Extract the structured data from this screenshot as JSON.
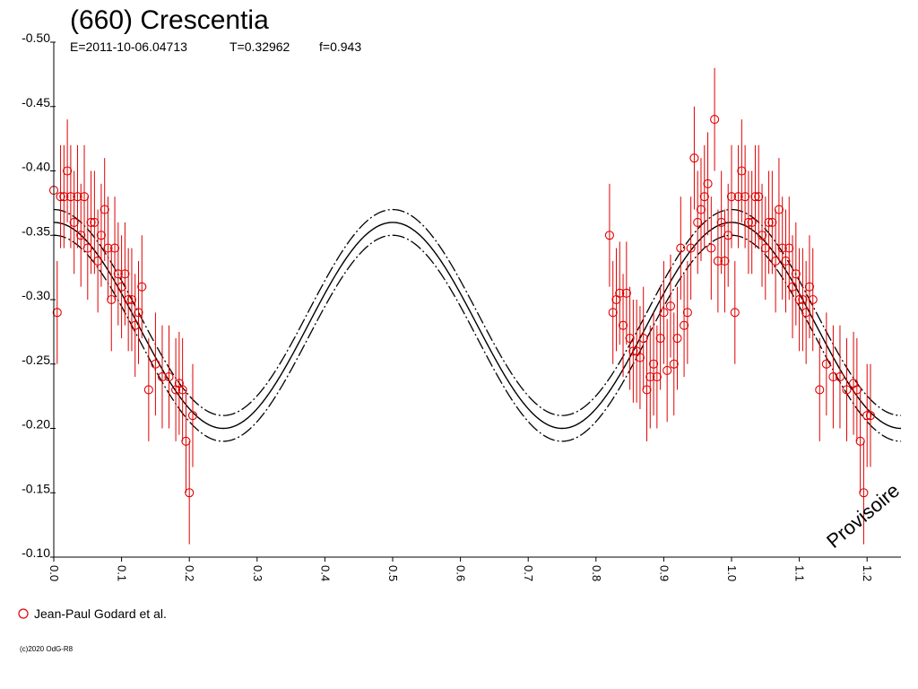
{
  "chart_data": {
    "type": "scatter",
    "title": "(660) Crescentia",
    "subtitle": {
      "epoch": "E=2011-10-06.04713",
      "period": "T=0.32962",
      "fraction": "f=0.943"
    },
    "xlabel": "",
    "ylabel": "",
    "xlim": [
      0.0,
      1.25
    ],
    "ylim": [
      -0.1,
      -0.5
    ],
    "x_ticks": [
      "0.0",
      "0.1",
      "0.2",
      "0.3",
      "0.4",
      "0.5",
      "0.6",
      "0.7",
      "0.8",
      "0.9",
      "1.0",
      "1.1",
      "1.2"
    ],
    "y_ticks": [
      "-0.50",
      "-0.45",
      "-0.40",
      "-0.35",
      "-0.30",
      "-0.25",
      "-0.20",
      "-0.15",
      "-0.10"
    ],
    "grid": false,
    "legend_position": "bottom-left",
    "colors": {
      "points": "#e00000",
      "model": "#000000",
      "axis": "#000000"
    },
    "model_curve": {
      "mean": -0.28,
      "amplitude": 0.08,
      "band": 0.01,
      "harmonic": 2
    },
    "series": [
      {
        "name": "Jean-Paul Godard et al.",
        "marker": "open-circle",
        "x": [
          0.0,
          0.005,
          0.01,
          0.015,
          0.02,
          0.025,
          0.03,
          0.035,
          0.04,
          0.045,
          0.05,
          0.055,
          0.06,
          0.065,
          0.07,
          0.075,
          0.08,
          0.085,
          0.09,
          0.095,
          0.1,
          0.105,
          0.11,
          0.115,
          0.12,
          0.125,
          0.13,
          0.14,
          0.15,
          0.16,
          0.17,
          0.18,
          0.185,
          0.19,
          0.195,
          0.2,
          0.205,
          0.82,
          0.825,
          0.83,
          0.835,
          0.84,
          0.845,
          0.85,
          0.855,
          0.86,
          0.865,
          0.87,
          0.875,
          0.88,
          0.885,
          0.89,
          0.895,
          0.9,
          0.905,
          0.91,
          0.915,
          0.92,
          0.925,
          0.93,
          0.935,
          0.94,
          0.945,
          0.95,
          0.955,
          0.96,
          0.965,
          0.97,
          0.975,
          0.98,
          0.985,
          0.99,
          0.995,
          1.0,
          1.005,
          1.01,
          1.015,
          1.02,
          1.025,
          1.03,
          1.035,
          1.04,
          1.045,
          1.05,
          1.055,
          1.06,
          1.065,
          1.07,
          1.075,
          1.08,
          1.085,
          1.09,
          1.095,
          1.1,
          1.105,
          1.11,
          1.115,
          1.12,
          1.13,
          1.14,
          1.15,
          1.16,
          1.17,
          1.18,
          1.185,
          1.19,
          1.195,
          1.2,
          1.205
        ],
        "y": [
          -0.385,
          -0.29,
          -0.38,
          -0.38,
          -0.4,
          -0.38,
          -0.36,
          -0.38,
          -0.35,
          -0.38,
          -0.34,
          -0.36,
          -0.36,
          -0.33,
          -0.35,
          -0.37,
          -0.34,
          -0.3,
          -0.34,
          -0.32,
          -0.31,
          -0.32,
          -0.3,
          -0.3,
          -0.28,
          -0.29,
          -0.31,
          -0.23,
          -0.25,
          -0.24,
          -0.24,
          -0.23,
          -0.235,
          -0.23,
          -0.19,
          -0.15,
          -0.21,
          -0.35,
          -0.29,
          -0.3,
          -0.305,
          -0.28,
          -0.305,
          -0.27,
          -0.26,
          -0.26,
          -0.255,
          -0.27,
          -0.23,
          -0.24,
          -0.25,
          -0.24,
          -0.27,
          -0.29,
          -0.245,
          -0.295,
          -0.25,
          -0.27,
          -0.34,
          -0.28,
          -0.29,
          -0.34,
          -0.41,
          -0.36,
          -0.37,
          -0.38,
          -0.39,
          -0.34,
          -0.44,
          -0.33,
          -0.36,
          -0.33,
          -0.35,
          -0.38,
          -0.29,
          -0.38,
          -0.4,
          -0.38,
          -0.36,
          -0.36,
          -0.38,
          -0.38,
          -0.35,
          -0.34,
          -0.36,
          -0.36,
          -0.33,
          -0.37,
          -0.34,
          -0.33,
          -0.34,
          -0.31,
          -0.32,
          -0.3,
          -0.3,
          -0.29,
          -0.31,
          -0.3,
          -0.23,
          -0.25,
          -0.24,
          -0.24,
          -0.23,
          -0.235,
          -0.23,
          -0.19,
          -0.15,
          -0.21,
          -0.21
        ],
        "err": [
          0.04,
          0.04,
          0.04,
          0.04,
          0.04,
          0.04,
          0.04,
          0.04,
          0.04,
          0.04,
          0.04,
          0.04,
          0.04,
          0.04,
          0.04,
          0.04,
          0.04,
          0.04,
          0.04,
          0.04,
          0.04,
          0.04,
          0.04,
          0.04,
          0.04,
          0.04,
          0.04,
          0.04,
          0.04,
          0.04,
          0.04,
          0.04,
          0.04,
          0.04,
          0.04,
          0.04,
          0.04,
          0.04,
          0.04,
          0.04,
          0.04,
          0.04,
          0.04,
          0.04,
          0.04,
          0.04,
          0.04,
          0.04,
          0.04,
          0.04,
          0.04,
          0.04,
          0.04,
          0.04,
          0.04,
          0.04,
          0.04,
          0.04,
          0.04,
          0.04,
          0.04,
          0.04,
          0.04,
          0.04,
          0.04,
          0.04,
          0.04,
          0.04,
          0.04,
          0.04,
          0.04,
          0.04,
          0.04,
          0.04,
          0.04,
          0.04,
          0.04,
          0.04,
          0.04,
          0.04,
          0.04,
          0.04,
          0.04,
          0.04,
          0.04,
          0.04,
          0.04,
          0.04,
          0.04,
          0.04,
          0.04,
          0.04,
          0.04,
          0.04,
          0.04,
          0.04,
          0.04,
          0.04,
          0.04,
          0.04,
          0.04,
          0.04,
          0.04,
          0.04,
          0.04,
          0.04,
          0.04,
          0.04,
          0.04
        ]
      }
    ],
    "watermark": "Provisoire",
    "copyright": "(c)2020 OdG-R8"
  }
}
